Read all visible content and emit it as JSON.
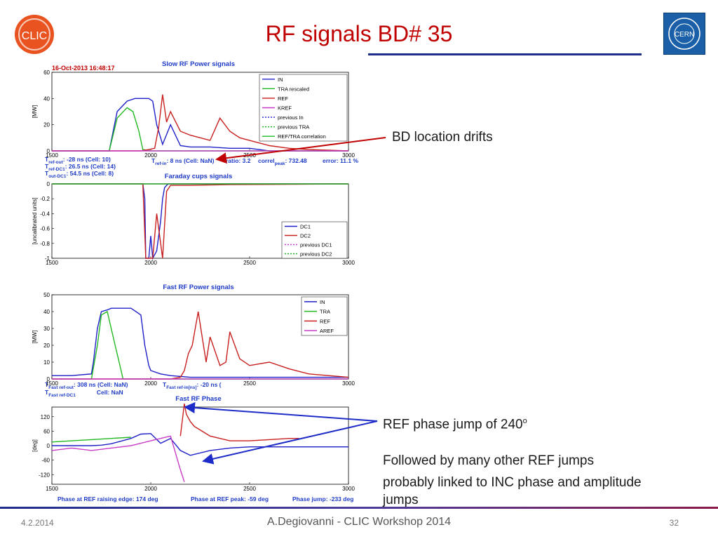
{
  "slide": {
    "title": "RF signals BD# 35",
    "footer_date": "4.2.2014",
    "footer_center": "A.Degiovanni - CLIC Workshop 2014",
    "page_number": "32",
    "clic_logo_text": "CLIC",
    "cern_logo_text": "CERN"
  },
  "annotations": {
    "bd_location": "BD location drifts",
    "phase_jump": "REF phase jump of 240",
    "phase_jump_sup": "o",
    "followed_line1": "Followed by many other REF jumps",
    "followed_line2": "probably linked to INC phase and amplitude",
    "followed_line3": "jumps"
  },
  "figure": {
    "timestamp": "16-Oct-2013   16:48:17",
    "slow_info": {
      "l1a": "T",
      "l1b": "ref-out",
      "l1c": ": -28 ns (Cell: 10)",
      "l2a": "T",
      "l2b": "ref-DC1",
      "l2c": ": 26.5 ns (Cell: 14)",
      "l3a": "T",
      "l3b": "out-DC1",
      "l3c": ": 54.5 ns (Cell: 8)",
      "mid_a": "T",
      "mid_b": "ref-in",
      "mid_c": ": 8 ns (Cell: NaN)",
      "ratio": "ratio: 3.2",
      "correl_a": "correl",
      "correl_b": "peak",
      "correl_c": ": 732.48",
      "error": "error: 11.1 %"
    },
    "fast_info": {
      "l1a": "T",
      "l1b": "Fast ref-out",
      "l1c": ": 308 ns   (Cell: NaN)",
      "l2a": "T",
      "l2b": "Fast ref-DC1",
      "l2c": "Cell: NaN",
      "mid_a": "T",
      "mid_b": "Fast ref-in[ns]",
      "mid_c": ": -20 ns ("
    },
    "phase_info": {
      "a": "Phase at REF raising edge: 174 deg",
      "b": "Phase at REF peak: -59 deg",
      "c": "Phase jump: -233 deg"
    }
  },
  "chart_data": [
    {
      "type": "line",
      "title": "Slow RF Power signals",
      "ylabel": "[MW]",
      "xlim": [
        1500,
        3000
      ],
      "ylim": [
        0,
        60
      ],
      "xticks": [
        1500,
        2000,
        2500,
        3000
      ],
      "yticks": [
        0,
        20,
        40,
        60
      ],
      "legend": [
        "IN",
        "TRA rescaled",
        "REF",
        "KREF",
        "previous In",
        "previous TRA",
        "REF/TRA correlation"
      ],
      "legend_position": "top-right",
      "series": [
        {
          "name": "IN",
          "color": "#1f1fc8",
          "x": [
            1500,
            1700,
            1790,
            1830,
            1880,
            1920,
            1960,
            1990,
            2010,
            2030,
            2060,
            2100,
            2150,
            2200,
            2300,
            2400,
            2500,
            2600,
            2700,
            2900,
            3000
          ],
          "y": [
            0,
            0,
            0,
            30,
            38,
            40,
            40,
            40,
            38,
            20,
            5,
            20,
            4,
            3,
            3,
            2,
            2,
            0,
            0,
            0,
            0
          ]
        },
        {
          "name": "TRA rescaled",
          "color": "#22b822",
          "x": [
            1500,
            1700,
            1790,
            1830,
            1880,
            1910,
            1940,
            1960,
            2000,
            2100,
            2500,
            3000
          ],
          "y": [
            0,
            0,
            0,
            25,
            33,
            30,
            15,
            1,
            0,
            0,
            0,
            0
          ]
        },
        {
          "name": "REF",
          "color": "#c81f1f",
          "x": [
            1500,
            1900,
            1950,
            1990,
            2020,
            2040,
            2060,
            2080,
            2100,
            2150,
            2200,
            2300,
            2350,
            2400,
            2450,
            2500,
            2550,
            2600,
            2700,
            2800,
            3000
          ],
          "y": [
            0,
            0,
            0,
            1,
            2,
            18,
            43,
            22,
            30,
            15,
            12,
            8,
            25,
            15,
            10,
            8,
            6,
            4,
            2,
            1,
            0
          ]
        },
        {
          "name": "KREF",
          "color": "#c83cc8",
          "x": [
            1500,
            3000
          ],
          "y": [
            0,
            0
          ]
        }
      ]
    },
    {
      "type": "line",
      "title": "Faraday cups signals",
      "ylabel": "[uncalibrated units]",
      "xlim": [
        1500,
        3000
      ],
      "ylim": [
        -1,
        0
      ],
      "xticks": [
        1500,
        2000,
        2500,
        3000
      ],
      "yticks": [
        0,
        -0.2,
        -0.4,
        -0.6,
        -0.8,
        -1
      ],
      "legend": [
        "DC1",
        "DC2",
        "previous DC1",
        "previous DC2"
      ],
      "legend_position": "bottom-right",
      "series": [
        {
          "name": "DC1",
          "color": "#1f1fc8",
          "x": [
            1500,
            1960,
            1970,
            1975,
            1990,
            2000,
            2010,
            2030,
            2050,
            2060,
            2070,
            2080,
            2090,
            2100,
            3000
          ],
          "y": [
            0,
            0,
            -0.2,
            -1,
            -1,
            -0.7,
            -1,
            -0.9,
            -0.5,
            -0.2,
            -0.05,
            -0.02,
            0,
            0,
            0
          ]
        },
        {
          "name": "DC2",
          "color": "#c81f1f",
          "x": [
            1500,
            1960,
            1975,
            1990,
            2010,
            2030,
            2060,
            2080,
            2100,
            2200,
            2400,
            3000
          ],
          "y": [
            0,
            0,
            -1,
            -1,
            -1,
            -0.4,
            -1,
            -0.1,
            -0.02,
            -0.02,
            -0.01,
            0
          ]
        },
        {
          "name": "previous DC1",
          "color": "#c83cc8",
          "x": [
            1500,
            3000
          ],
          "y": [
            0,
            0
          ]
        },
        {
          "name": "previous DC2",
          "color": "#22b822",
          "x": [
            1500,
            3000
          ],
          "y": [
            0,
            0
          ]
        }
      ]
    },
    {
      "type": "line",
      "title": "Fast RF Power signals",
      "ylabel": "[MW]",
      "xlim": [
        1500,
        3000
      ],
      "ylim": [
        0,
        50
      ],
      "xticks": [
        1500,
        2000,
        2500,
        3000
      ],
      "yticks": [
        0,
        10,
        20,
        30,
        40,
        50
      ],
      "legend": [
        "IN",
        "TRA",
        "REF",
        "AREF"
      ],
      "legend_position": "top-right",
      "series": [
        {
          "name": "IN",
          "color": "#1f1fc8",
          "x": [
            1500,
            1600,
            1700,
            1710,
            1730,
            1750,
            1780,
            1800,
            1850,
            1900,
            1950,
            1970,
            1990,
            2000,
            2050,
            2100,
            2200,
            2400,
            2600,
            3000
          ],
          "y": [
            2,
            2,
            3,
            10,
            30,
            40,
            41,
            42,
            42,
            42,
            38,
            20,
            8,
            5,
            3,
            2,
            1,
            1,
            1,
            1
          ]
        },
        {
          "name": "TRA",
          "color": "#22b822",
          "x": [
            1500,
            1700,
            1730,
            1750,
            1780,
            1800,
            1820,
            1840,
            1860,
            2000,
            3000
          ],
          "y": [
            0,
            0,
            20,
            38,
            40,
            30,
            20,
            10,
            0,
            0,
            0
          ]
        },
        {
          "name": "REF",
          "color": "#c81f1f",
          "x": [
            1500,
            2100,
            2150,
            2170,
            2190,
            2210,
            2240,
            2260,
            2280,
            2300,
            2350,
            2380,
            2400,
            2450,
            2500,
            2600,
            2700,
            2800,
            3000
          ],
          "y": [
            0,
            0,
            1,
            5,
            15,
            20,
            40,
            25,
            10,
            25,
            8,
            10,
            28,
            12,
            8,
            10,
            6,
            3,
            1
          ]
        },
        {
          "name": "AREF",
          "color": "#c83cc8",
          "x": [
            1500,
            3000
          ],
          "y": [
            0,
            0
          ]
        }
      ]
    },
    {
      "type": "line",
      "title": "Fast RF Phase",
      "ylabel": "[deg]",
      "xlim": [
        1500,
        3000
      ],
      "ylim": [
        -160,
        160
      ],
      "xticks": [
        1500,
        2000,
        2500,
        3000
      ],
      "yticks": [
        120,
        60,
        0,
        -60,
        -120
      ],
      "series": [
        {
          "name": "IN",
          "color": "#1f1fc8",
          "x": [
            1500,
            1700,
            1750,
            1800,
            1900,
            1950,
            2000,
            2050,
            2100,
            2150,
            2200,
            2300,
            2400,
            2500,
            2600,
            2700,
            3000
          ],
          "y": [
            0,
            0,
            2,
            8,
            30,
            48,
            50,
            10,
            30,
            -20,
            -40,
            -20,
            -10,
            -5,
            -5,
            -5,
            -5
          ]
        },
        {
          "name": "REF",
          "color": "#c81f1f",
          "x": [
            2150,
            2170,
            2180,
            2200,
            2220,
            2260,
            2300,
            2350,
            2400,
            2500,
            2600,
            2700,
            2750
          ],
          "y": [
            40,
            174,
            130,
            100,
            80,
            60,
            40,
            30,
            20,
            20,
            25,
            30,
            30
          ]
        },
        {
          "name": "TRA",
          "color": "#22b822",
          "x": [
            1500,
            1600,
            1700,
            1800,
            1900
          ],
          "y": [
            15,
            20,
            25,
            30,
            35
          ]
        },
        {
          "name": "AREF",
          "color": "#c83cc8",
          "x": [
            1500,
            1600,
            1700,
            1800,
            1900,
            2000,
            2100,
            2150,
            2170
          ],
          "y": [
            -20,
            -10,
            -20,
            -10,
            0,
            20,
            40,
            -100,
            -150
          ]
        }
      ]
    }
  ]
}
